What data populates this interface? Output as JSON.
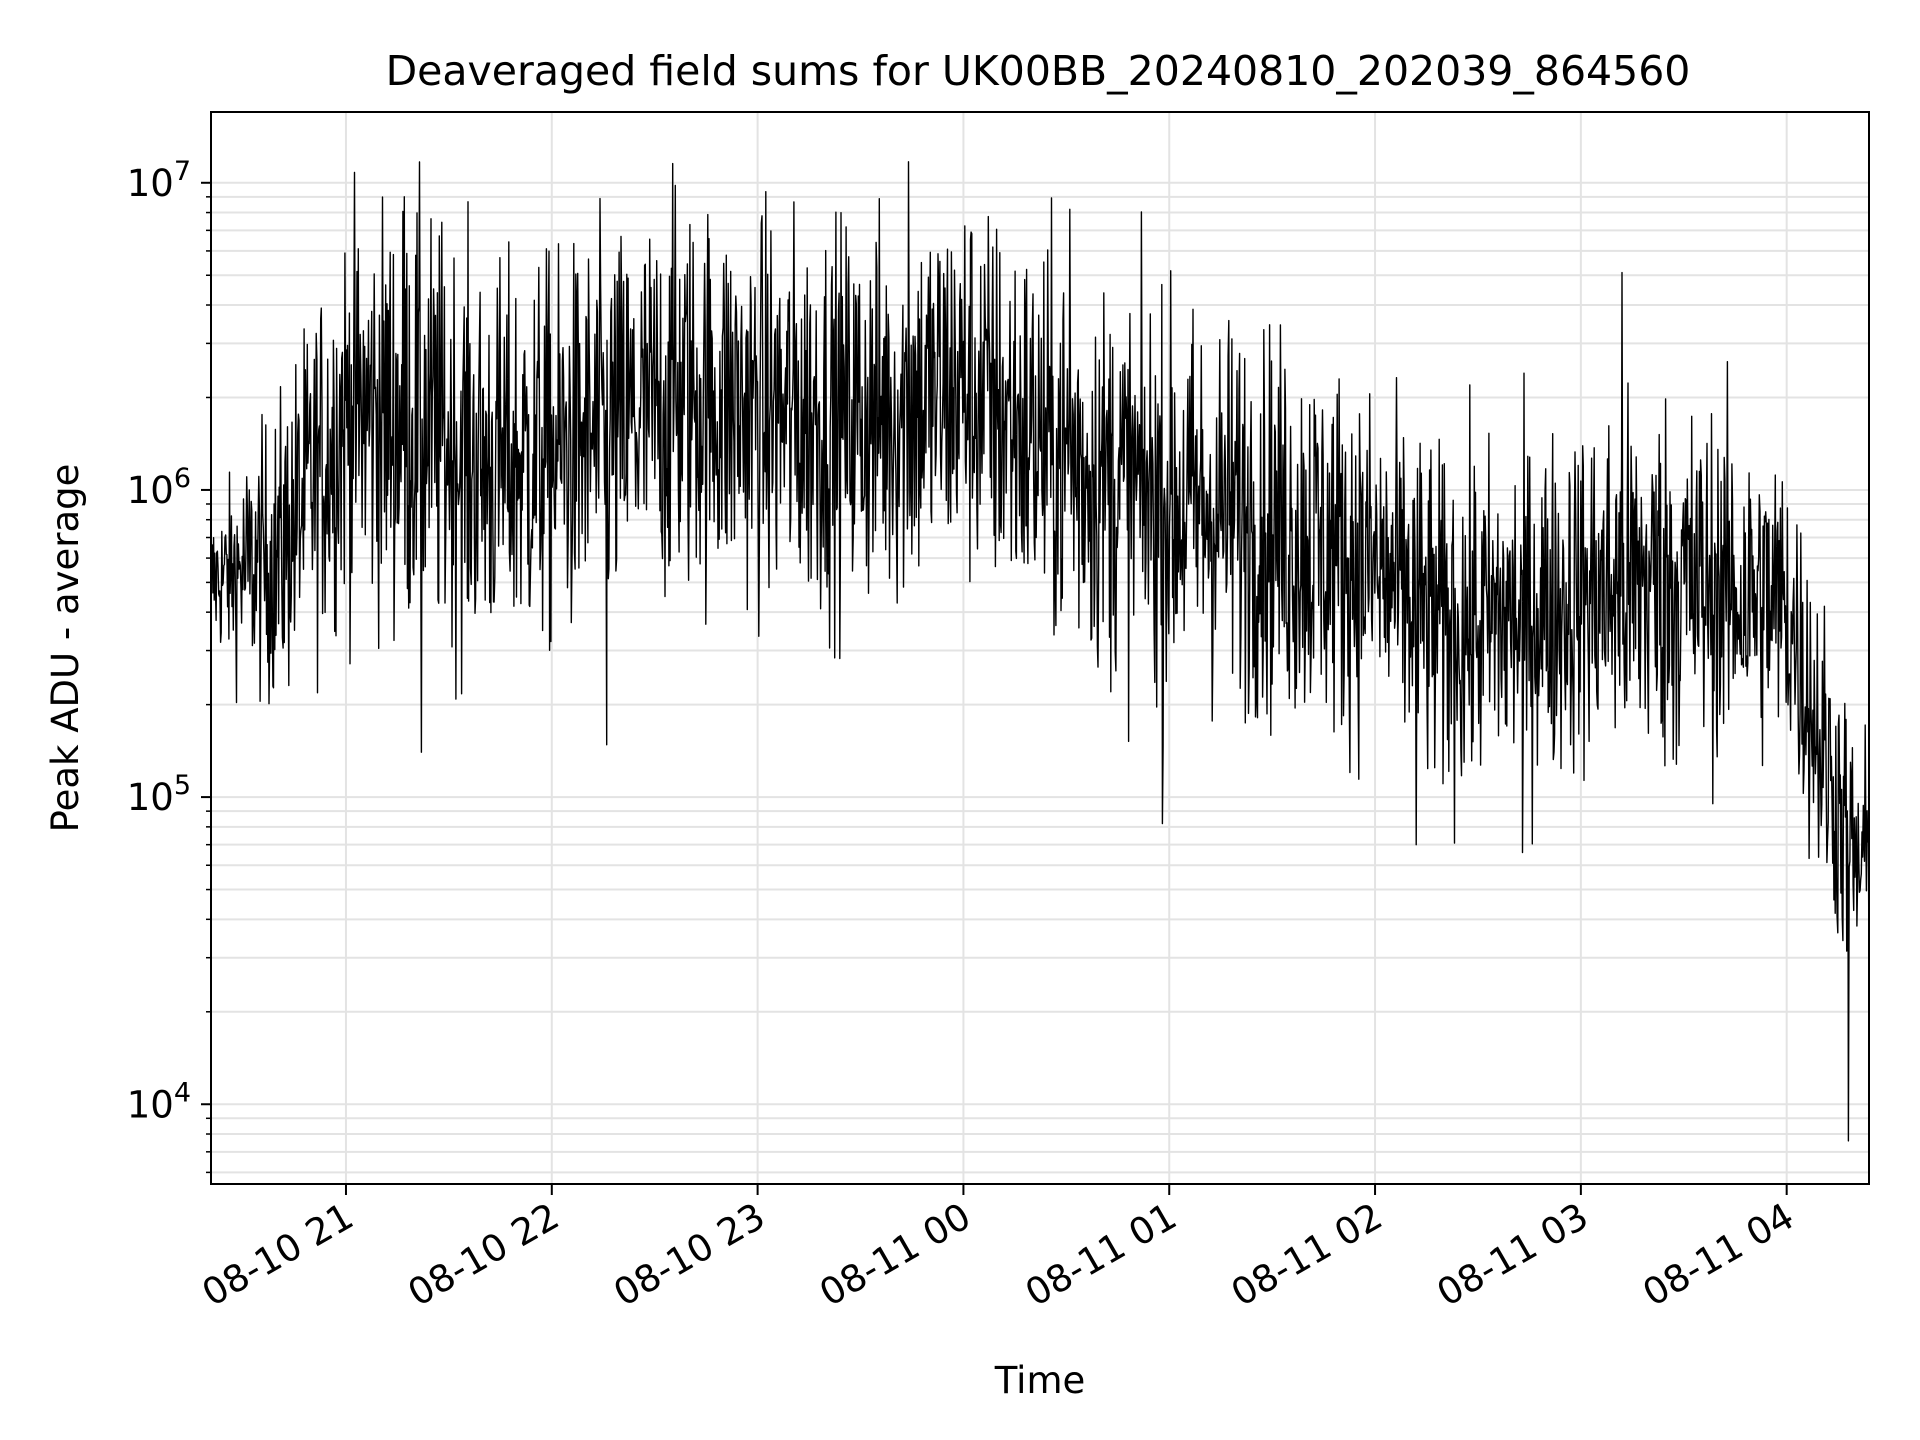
{
  "chart_data": {
    "type": "line",
    "title": "Deaveraged field sums for UK00BB_20240810_202039_864560",
    "xlabel": "Time",
    "ylabel": "Peak ADU - average",
    "yscale": "log",
    "ylim": [
      5500,
      17000000
    ],
    "xlim": [
      "2024-08-10 20:20:39",
      "2024-08-11 04:24:00"
    ],
    "grid": true,
    "x_ticks": [
      {
        "label": "08-10 21",
        "time": "2024-08-10 21:00"
      },
      {
        "label": "08-10 22",
        "time": "2024-08-10 22:00"
      },
      {
        "label": "08-10 23",
        "time": "2024-08-10 23:00"
      },
      {
        "label": "08-11 00",
        "time": "2024-08-11 00:00"
      },
      {
        "label": "08-11 01",
        "time": "2024-08-11 01:00"
      },
      {
        "label": "08-11 02",
        "time": "2024-08-11 02:00"
      },
      {
        "label": "08-11 03",
        "time": "2024-08-11 03:00"
      },
      {
        "label": "08-11 04",
        "time": "2024-08-11 04:00"
      }
    ],
    "y_ticks": [
      {
        "base": "10",
        "exp": "4",
        "value": 10000
      },
      {
        "base": "10",
        "exp": "5",
        "value": 100000
      },
      {
        "base": "10",
        "exp": "6",
        "value": 1000000
      },
      {
        "base": "10",
        "exp": "7",
        "value": 10000000
      }
    ],
    "series": [
      {
        "color": "#000000",
        "envelope": {
          "x": [
            "2024-08-10 20:20",
            "2024-08-10 20:40",
            "2024-08-10 21:00",
            "2024-08-10 21:20",
            "2024-08-10 21:40",
            "2024-08-10 22:00",
            "2024-08-10 22:20",
            "2024-08-10 22:40",
            "2024-08-10 23:00",
            "2024-08-10 23:20",
            "2024-08-10 23:40",
            "2024-08-11 00:00",
            "2024-08-11 00:20",
            "2024-08-11 00:40",
            "2024-08-11 01:00",
            "2024-08-11 01:20",
            "2024-08-11 01:40",
            "2024-08-11 02:00",
            "2024-08-11 02:20",
            "2024-08-11 02:40",
            "2024-08-11 03:00",
            "2024-08-11 03:20",
            "2024-08-11 03:40",
            "2024-08-11 04:00",
            "2024-08-11 04:10",
            "2024-08-11 04:20"
          ],
          "median": [
            500000,
            600000,
            1800000,
            1700000,
            1200000,
            1300000,
            1600000,
            2000000,
            1800000,
            1700000,
            1800000,
            2200000,
            1500000,
            1100000,
            900000,
            850000,
            700000,
            550000,
            350000,
            380000,
            450000,
            500000,
            480000,
            420000,
            150000,
            60000
          ],
          "spread_decades": [
            0.15,
            0.35,
            0.45,
            0.5,
            0.45,
            0.45,
            0.45,
            0.45,
            0.45,
            0.45,
            0.45,
            0.45,
            0.45,
            0.45,
            0.45,
            0.45,
            0.45,
            0.4,
            0.4,
            0.4,
            0.4,
            0.45,
            0.4,
            0.35,
            0.35,
            0.3
          ]
        },
        "peaks": [
          {
            "x": "2024-08-10 21:17",
            "y": 9000000
          },
          {
            "x": "2024-08-10 22:36",
            "y": 9800000
          },
          {
            "x": "2024-08-10 23:44",
            "y": 11700000
          },
          {
            "x": "2024-08-11 00:31",
            "y": 8200000
          },
          {
            "x": "2024-08-11 03:12",
            "y": 5100000
          }
        ],
        "troughs": [
          {
            "x": "2024-08-10 21:22",
            "y": 140000
          },
          {
            "x": "2024-08-10 22:16",
            "y": 148000
          },
          {
            "x": "2024-08-11 00:58",
            "y": 82000
          },
          {
            "x": "2024-08-11 02:12",
            "y": 70000
          },
          {
            "x": "2024-08-11 02:43",
            "y": 66000
          },
          {
            "x": "2024-08-11 04:18",
            "y": 7600
          }
        ]
      }
    ]
  }
}
